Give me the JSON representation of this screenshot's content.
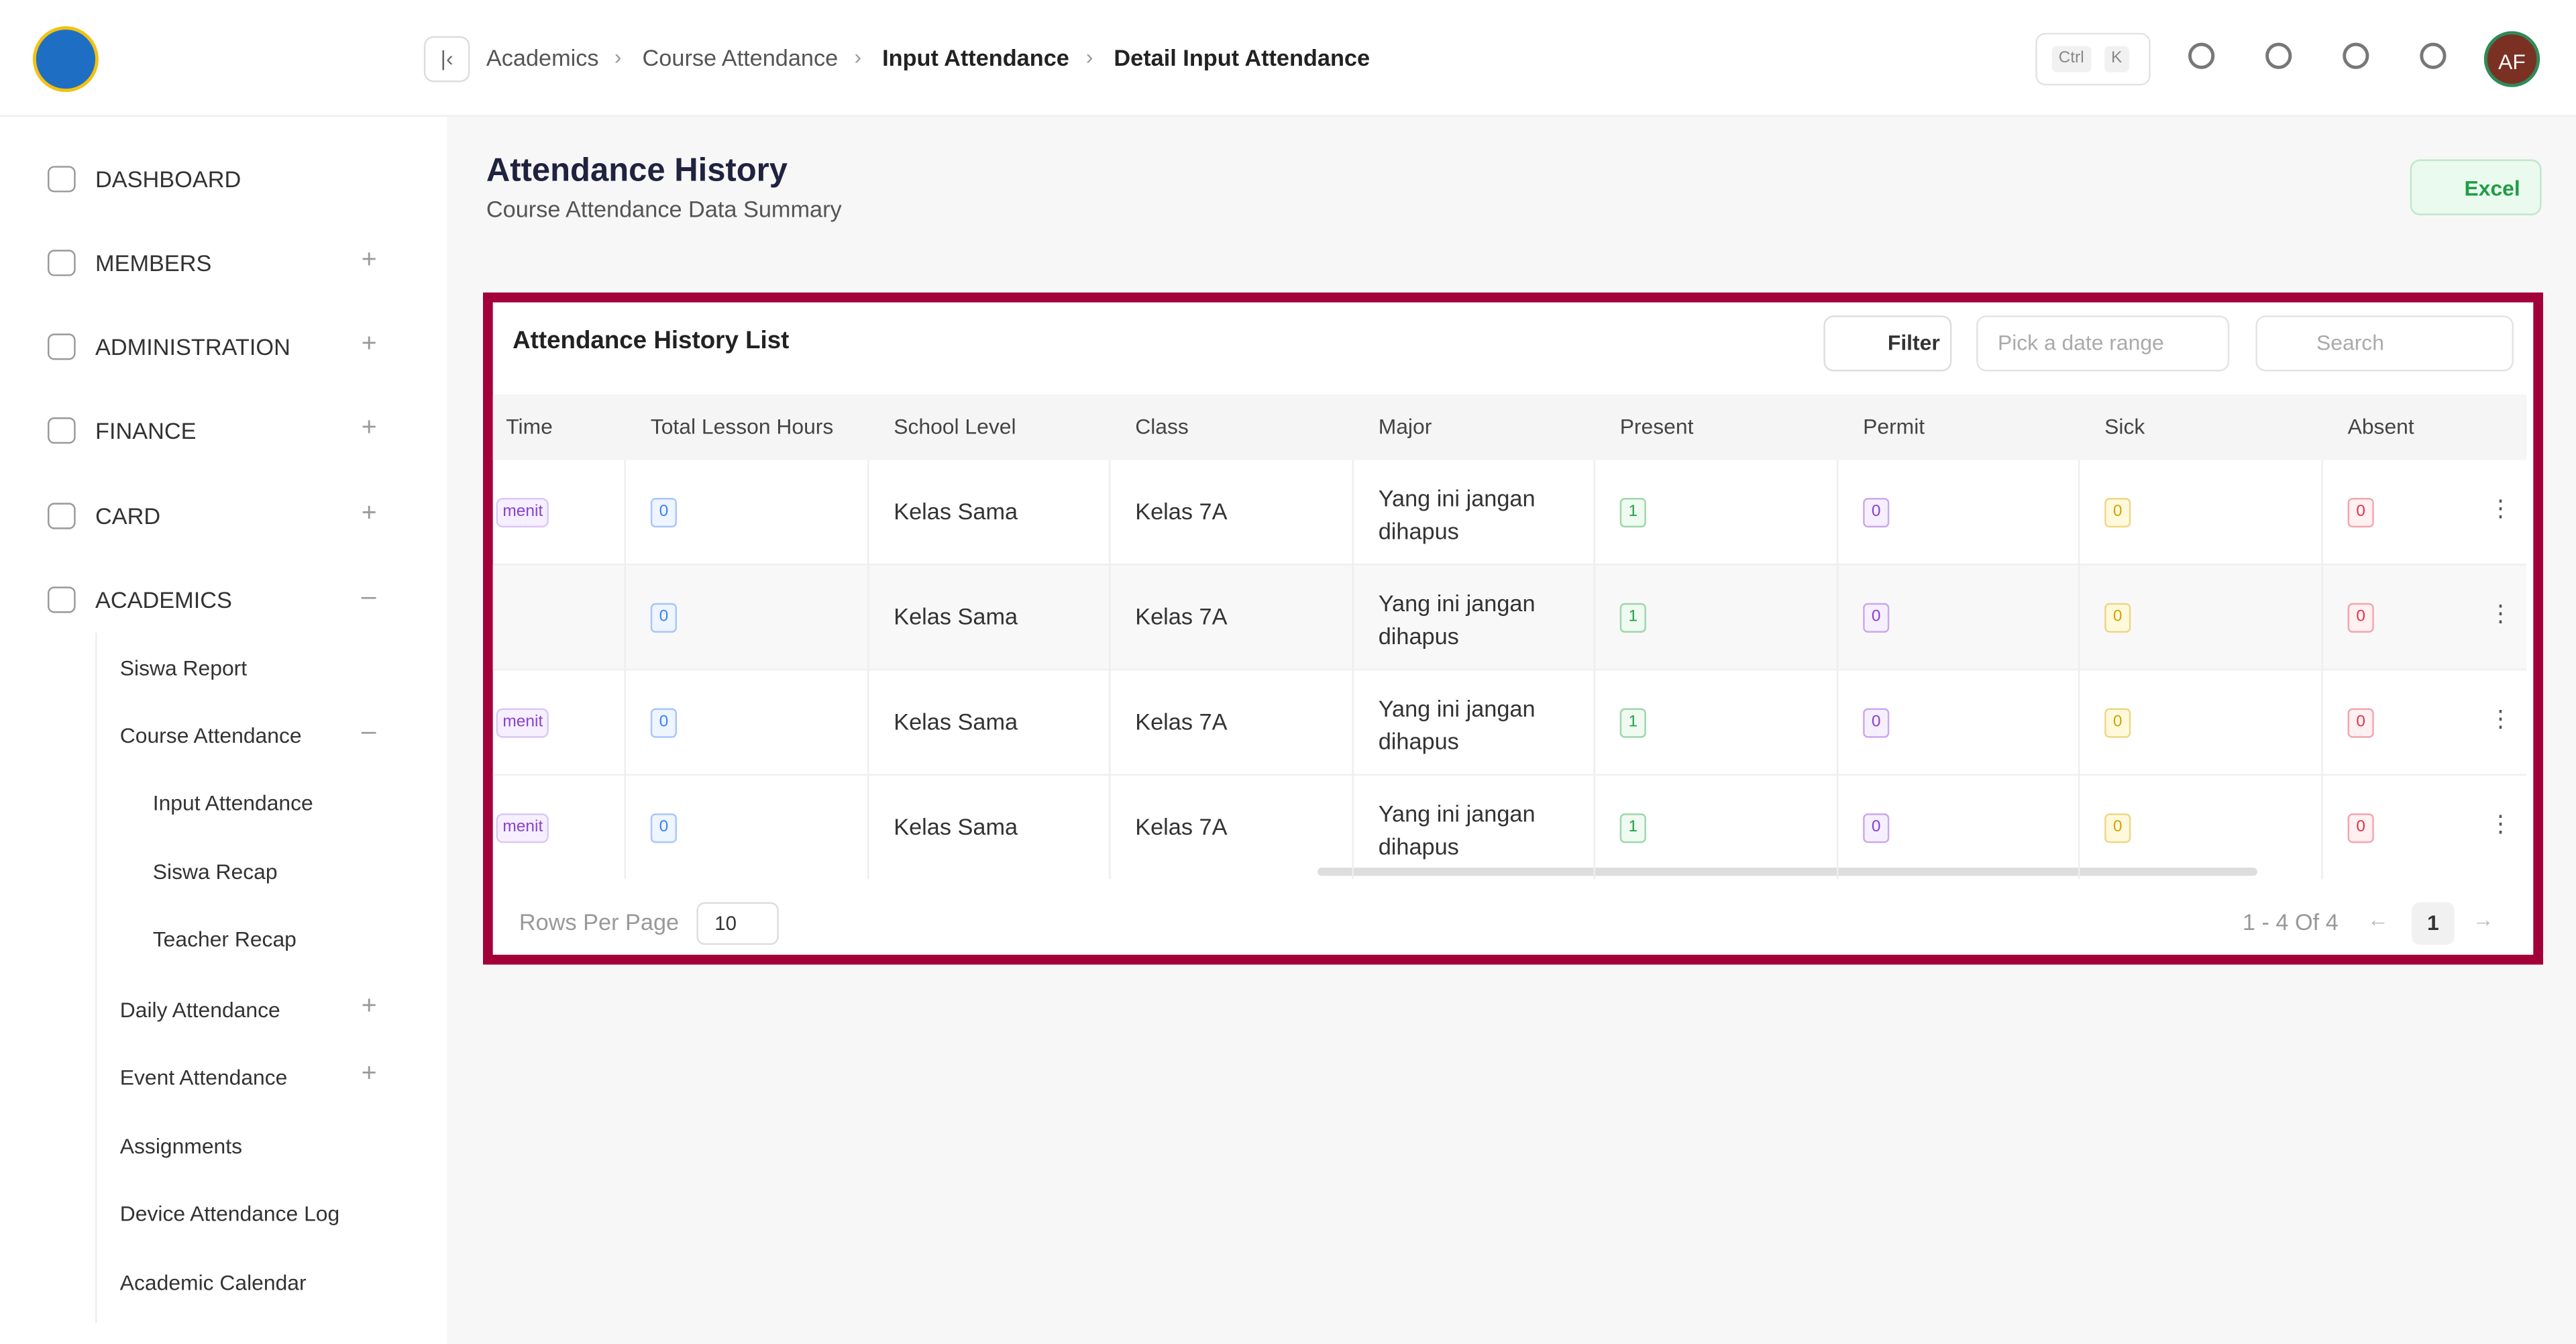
{
  "header": {
    "breadcrumb": [
      "Academics",
      "Course Attendance",
      "Input Attendance",
      "Detail Input Attendance"
    ],
    "shortcut": [
      "Ctrl",
      "K"
    ],
    "avatar": "AF"
  },
  "sidebar": {
    "items": [
      {
        "label": "DASHBOARD"
      },
      {
        "label": "MEMBERS"
      },
      {
        "label": "ADMINISTRATION"
      },
      {
        "label": "FINANCE"
      },
      {
        "label": "CARD"
      },
      {
        "label": "ACADEMICS"
      }
    ],
    "subitems": [
      {
        "label": "Siswa Report",
        "level": 1
      },
      {
        "label": "Course Attendance",
        "level": 1
      },
      {
        "label": "Input Attendance",
        "level": 2
      },
      {
        "label": "Siswa Recap",
        "level": 2
      },
      {
        "label": "Teacher Recap",
        "level": 2
      },
      {
        "label": "Daily Attendance",
        "level": 1
      },
      {
        "label": "Event Attendance",
        "level": 1
      },
      {
        "label": "Assignments",
        "level": 1
      },
      {
        "label": "Device Attendance Log",
        "level": 1
      },
      {
        "label": "Academic Calendar",
        "level": 1
      }
    ]
  },
  "page": {
    "title": "Attendance History",
    "subtitle": "Course Attendance Data Summary",
    "export": "Excel"
  },
  "card": {
    "title": "Attendance History List",
    "filter": "Filter",
    "date_range": "Pick a date range",
    "search": "Search"
  },
  "table": {
    "columns": [
      "Time",
      "Total Lesson Hours",
      "School Level",
      "Class",
      "Major",
      "Present",
      "Permit",
      "Sick",
      "Absent"
    ],
    "rows": [
      [
        "menit",
        0,
        "Kelas Sama",
        "Kelas 7A",
        "Yang ini jangan dihapus",
        1,
        0,
        0,
        0
      ],
      [
        null,
        0,
        "Kelas Sama",
        "Kelas 7A",
        "Yang ini jangan dihapus",
        1,
        0,
        0,
        0
      ],
      [
        "menit",
        0,
        "Kelas Sama",
        "Kelas 7A",
        "Yang ini jangan dihapus",
        1,
        0,
        0,
        0
      ],
      [
        "menit",
        0,
        "Kelas Sama",
        "Kelas 7A",
        "Yang ini jangan dihapus",
        1,
        0,
        0,
        0
      ]
    ]
  },
  "footer": {
    "rows_per_page": "Rows Per Page",
    "page_size": 10,
    "range": "1 - 4 Of 4",
    "page": 1
  }
}
